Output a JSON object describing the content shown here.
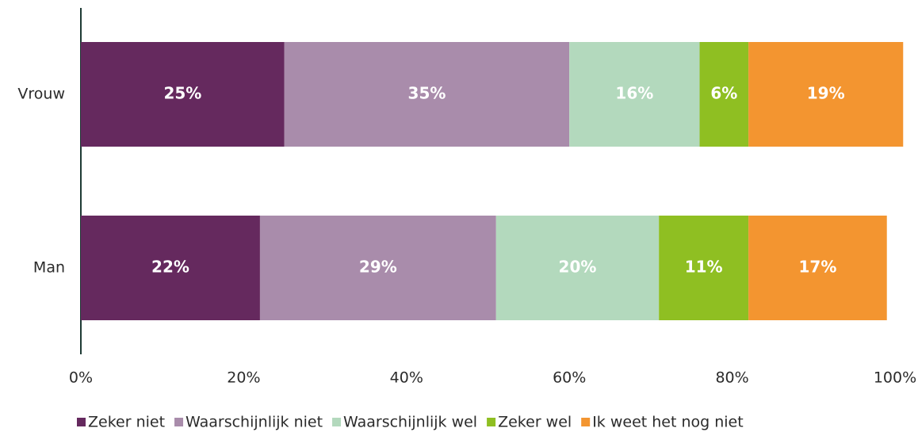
{
  "chart_data": {
    "type": "stacked-bar-horizontal",
    "categories": [
      "Vrouw",
      "Man"
    ],
    "series": [
      {
        "name": "Zeker niet",
        "color": "#65295e",
        "values": [
          25,
          22
        ],
        "value_labels": [
          "25%",
          "22%"
        ]
      },
      {
        "name": "Waarschijnlijk niet",
        "color": "#a98cab",
        "values": [
          35,
          29
        ],
        "value_labels": [
          "35%",
          "29%"
        ]
      },
      {
        "name": "Waarschijnlijk wel",
        "color": "#b3d9bd",
        "values": [
          16,
          20
        ],
        "value_labels": [
          "16%",
          "20%"
        ]
      },
      {
        "name": "Zeker wel",
        "color": "#8fbf22",
        "values": [
          6,
          11
        ],
        "value_labels": [
          "6%",
          "11%"
        ]
      },
      {
        "name": "Ik weet het nog niet",
        "color": "#f39530",
        "values": [
          19,
          17
        ],
        "value_labels": [
          "19%",
          "17%"
        ]
      }
    ],
    "xlim": [
      0,
      100
    ],
    "xticks": [
      {
        "value": 0,
        "label": "0%"
      },
      {
        "value": 20,
        "label": "20%"
      },
      {
        "value": 40,
        "label": "40%"
      },
      {
        "value": 60,
        "label": "60%"
      },
      {
        "value": 80,
        "label": "80%"
      },
      {
        "value": 100,
        "label": "100%"
      }
    ],
    "legend": "bottom"
  }
}
